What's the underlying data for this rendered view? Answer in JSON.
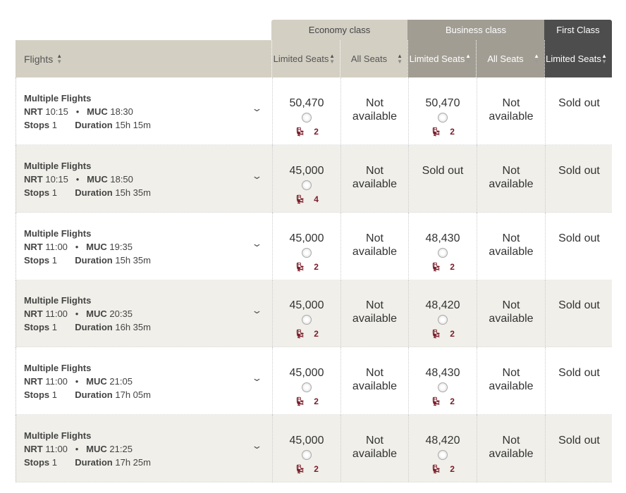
{
  "header": {
    "groups": {
      "economy": "Economy class",
      "business": "Business class",
      "first": "First Class"
    },
    "flights": "Flights",
    "sub": [
      "Limited Seats",
      "All Seats",
      "Limited Seats",
      "All Seats",
      "Limited Seats"
    ]
  },
  "colors": {
    "economy": "#d3cfc3",
    "business": "#a19d93",
    "first": "#4d4d4d",
    "seat_accent": "#7b1c2a"
  },
  "labels": {
    "stops": "Stops",
    "duration": "Duration",
    "origin": "NRT",
    "dest": "MUC"
  },
  "rows": [
    {
      "title": "Multiple Flights",
      "dep": "10:15",
      "arr": "18:30",
      "stops": "1",
      "duration": "15h 15m",
      "cells": [
        {
          "price": "50,470",
          "seats": "2"
        },
        {
          "text": "Not available"
        },
        {
          "price": "50,470",
          "seats": "2"
        },
        {
          "text": "Not available"
        },
        {
          "text": "Sold out"
        }
      ]
    },
    {
      "title": "Multiple Flights",
      "dep": "10:15",
      "arr": "18:50",
      "stops": "1",
      "duration": "15h 35m",
      "cells": [
        {
          "price": "45,000",
          "seats": "4"
        },
        {
          "text": "Not available"
        },
        {
          "text": "Sold out"
        },
        {
          "text": "Not available"
        },
        {
          "text": "Sold out"
        }
      ]
    },
    {
      "title": "Multiple Flights",
      "dep": "11:00",
      "arr": "19:35",
      "stops": "1",
      "duration": "15h 35m",
      "cells": [
        {
          "price": "45,000",
          "seats": "2"
        },
        {
          "text": "Not available"
        },
        {
          "price": "48,430",
          "seats": "2"
        },
        {
          "text": "Not available"
        },
        {
          "text": "Sold out"
        }
      ]
    },
    {
      "title": "Multiple Flights",
      "dep": "11:00",
      "arr": "20:35",
      "stops": "1",
      "duration": "16h 35m",
      "cells": [
        {
          "price": "45,000",
          "seats": "2"
        },
        {
          "text": "Not available"
        },
        {
          "price": "48,420",
          "seats": "2"
        },
        {
          "text": "Not available"
        },
        {
          "text": "Sold out"
        }
      ]
    },
    {
      "title": "Multiple Flights",
      "dep": "11:00",
      "arr": "21:05",
      "stops": "1",
      "duration": "17h 05m",
      "cells": [
        {
          "price": "45,000",
          "seats": "2"
        },
        {
          "text": "Not available"
        },
        {
          "price": "48,430",
          "seats": "2"
        },
        {
          "text": "Not available"
        },
        {
          "text": "Sold out"
        }
      ]
    },
    {
      "title": "Multiple Flights",
      "dep": "11:00",
      "arr": "21:25",
      "stops": "1",
      "duration": "17h 25m",
      "cells": [
        {
          "price": "45,000",
          "seats": "2"
        },
        {
          "text": "Not available"
        },
        {
          "price": "48,420",
          "seats": "2"
        },
        {
          "text": "Not available"
        },
        {
          "text": "Sold out"
        }
      ]
    }
  ]
}
